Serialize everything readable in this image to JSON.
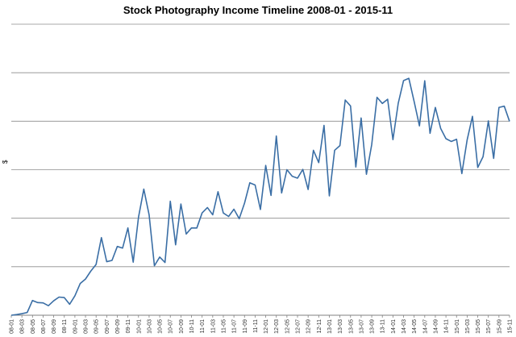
{
  "chart_data": {
    "type": "line",
    "title": "Stock Photography Income Timeline 2008-01  - 2015-11",
    "xlabel": "",
    "ylabel": "$",
    "y_tick_labels_shown": false,
    "gridlines": 6,
    "grid": "horizontal",
    "legend": "none",
    "line_color": "#3a6ea5",
    "x_tick_labels": [
      "08-01",
      "08-03",
      "08-05",
      "08-07",
      "08-09",
      "08-11",
      "09-01",
      "09-03",
      "09-05",
      "09-07",
      "09-09",
      "09-11",
      "10-01",
      "10-03",
      "10-05",
      "10-07",
      "10-09",
      "10-11",
      "11-01",
      "11-03",
      "11-05",
      "11-07",
      "11-09",
      "11-11",
      "12-01",
      "12-03",
      "12-05",
      "12-07",
      "12-09",
      "12-11",
      "13-01",
      "13-03",
      "13-05",
      "13-07",
      "13-09",
      "13-11",
      "14-01",
      "14-03",
      "14-05",
      "14-07",
      "14-09",
      "14-11",
      "15-01",
      "15-03",
      "15-05",
      "15-07",
      "15-09",
      "15-11"
    ],
    "x": [
      "08-01",
      "08-02",
      "08-03",
      "08-04",
      "08-05",
      "08-06",
      "08-07",
      "08-08",
      "08-09",
      "08-10",
      "08-11",
      "08-12",
      "09-01",
      "09-02",
      "09-03",
      "09-04",
      "09-05",
      "09-06",
      "09-07",
      "09-08",
      "09-09",
      "09-10",
      "09-11",
      "09-12",
      "10-01",
      "10-02",
      "10-03",
      "10-04",
      "10-05",
      "10-06",
      "10-07",
      "10-08",
      "10-09",
      "10-10",
      "10-11",
      "10-12",
      "11-01",
      "11-02",
      "11-03",
      "11-04",
      "11-05",
      "11-06",
      "11-07",
      "11-08",
      "11-09",
      "11-10",
      "11-11",
      "11-12",
      "12-01",
      "12-02",
      "12-03",
      "12-04",
      "12-05",
      "12-06",
      "12-07",
      "12-08",
      "12-09",
      "12-10",
      "12-11",
      "12-12",
      "13-01",
      "13-02",
      "13-03",
      "13-04",
      "13-05",
      "13-06",
      "13-07",
      "13-08",
      "13-09",
      "13-10",
      "13-11",
      "13-12",
      "14-01",
      "14-02",
      "14-03",
      "14-04",
      "14-05",
      "14-06",
      "14-07",
      "14-08",
      "14-09",
      "14-10",
      "14-11",
      "14-12",
      "15-01",
      "15-02",
      "15-03",
      "15-04",
      "15-05",
      "15-06",
      "15-07",
      "15-08",
      "15-09",
      "15-10",
      "15-11"
    ],
    "values": [
      0.0,
      0.07,
      0.16,
      0.28,
      1.52,
      1.3,
      1.27,
      0.98,
      1.49,
      1.87,
      1.82,
      1.13,
      2.0,
      3.27,
      3.73,
      4.55,
      5.24,
      8.0,
      5.52,
      5.65,
      7.09,
      6.92,
      9.0,
      5.47,
      10.1,
      13.0,
      10.35,
      5.1,
      6.0,
      5.44,
      11.75,
      7.26,
      11.46,
      8.37,
      9.0,
      8.99,
      10.55,
      11.1,
      10.35,
      12.73,
      10.54,
      10.18,
      10.93,
      9.95,
      11.55,
      13.65,
      13.42,
      10.9,
      15.44,
      12.35,
      18.47,
      12.6,
      15.0,
      14.32,
      14.13,
      15.03,
      12.96,
      17.0,
      15.73,
      19.57,
      12.3,
      17.0,
      17.48,
      22.18,
      21.57,
      15.28,
      20.33,
      14.53,
      17.6,
      22.46,
      21.83,
      22.26,
      18.1,
      21.85,
      24.18,
      24.42,
      22.03,
      19.52,
      24.17,
      18.75,
      21.42,
      19.26,
      18.2,
      17.91,
      18.14,
      14.6,
      18.07,
      20.5,
      15.23,
      16.34,
      20.03,
      16.17,
      21.42,
      21.55,
      19.98
    ]
  }
}
